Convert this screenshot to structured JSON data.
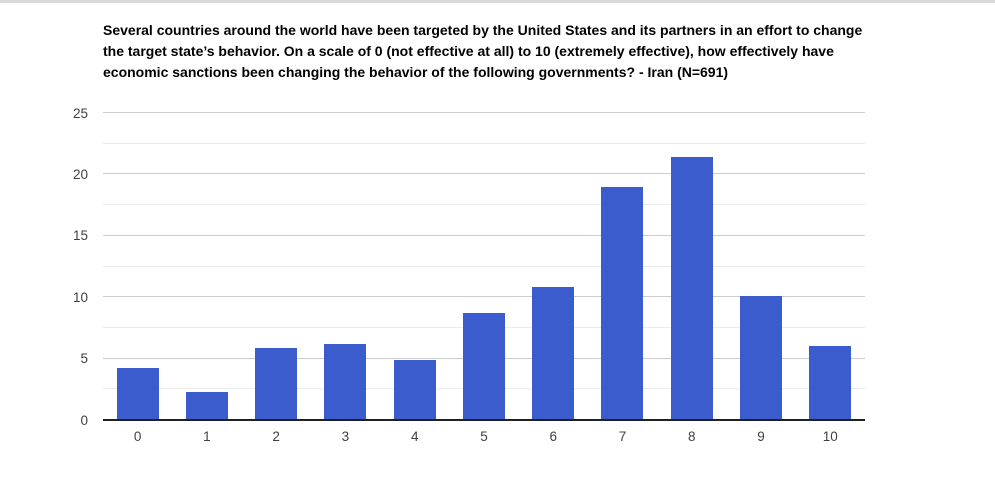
{
  "page": {
    "background": "#ffffff",
    "top_border_color": "#d9d9d9"
  },
  "chart_data": {
    "type": "bar",
    "title": "Several countries around the world have been targeted by the United States and its partners in an effort to change the target state’s behavior. On a scale of 0 (not effective at all) to 10 (extremely effective), how effectively have economic sanctions been changing the behavior of the following governments? - Iran (N=691)",
    "categories": [
      "0",
      "1",
      "2",
      "3",
      "4",
      "5",
      "6",
      "7",
      "8",
      "9",
      "10"
    ],
    "values": [
      4.2,
      2.3,
      5.9,
      6.2,
      4.9,
      8.7,
      10.8,
      19.0,
      21.4,
      10.1,
      6.0
    ],
    "xlabel": "",
    "ylabel": "",
    "ylim": [
      0,
      25
    ],
    "yticks": [
      0,
      5,
      10,
      15,
      20,
      25
    ],
    "minor_ticks": [
      2.5,
      7.5,
      12.5,
      17.5,
      22.5
    ],
    "bar_color": "#3a5ccc",
    "axis_color": "#212121",
    "tick_label_color": "#404040",
    "grid": {
      "major_color": "#cccccc",
      "minor_color": "#ebebeb",
      "grid_on": true
    },
    "legend": "none"
  }
}
